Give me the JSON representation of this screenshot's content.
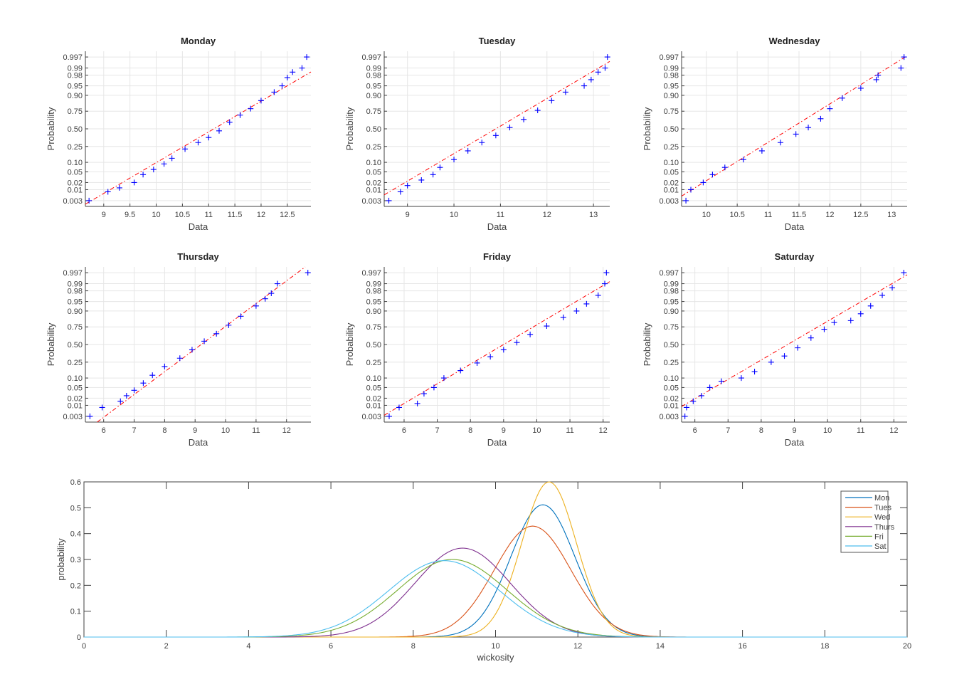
{
  "chart_data": [
    {
      "type": "scatter",
      "title": "Monday",
      "xlabel": "Data",
      "ylabel": "Probability",
      "grid": true,
      "xlim": [
        8.65,
        12.95
      ],
      "xticks": [
        9,
        9.5,
        10,
        10.5,
        11,
        11.5,
        12,
        12.5
      ],
      "yticks": [
        "0.003",
        "0.01",
        "0.02",
        "0.05",
        "0.10",
        "0.25",
        "0.50",
        "0.75",
        "0.90",
        "0.95",
        "0.98",
        "0.99",
        "0.997"
      ],
      "fit": {
        "mu": 11.1,
        "sigma": 0.85
      },
      "points": [
        [
          8.72,
          0.003
        ],
        [
          9.08,
          0.008
        ],
        [
          9.3,
          0.012
        ],
        [
          9.58,
          0.02
        ],
        [
          9.75,
          0.04
        ],
        [
          9.95,
          0.06
        ],
        [
          10.15,
          0.09
        ],
        [
          10.3,
          0.13
        ],
        [
          10.55,
          0.22
        ],
        [
          10.8,
          0.3
        ],
        [
          11.0,
          0.37
        ],
        [
          11.2,
          0.47
        ],
        [
          11.4,
          0.6
        ],
        [
          11.6,
          0.7
        ],
        [
          11.8,
          0.78
        ],
        [
          12.0,
          0.86
        ],
        [
          12.25,
          0.92
        ],
        [
          12.4,
          0.95
        ],
        [
          12.5,
          0.975
        ],
        [
          12.6,
          0.985
        ],
        [
          12.78,
          0.99
        ],
        [
          12.87,
          0.997
        ]
      ]
    },
    {
      "type": "scatter",
      "title": "Tuesday",
      "xlabel": "Data",
      "ylabel": "Probability",
      "grid": true,
      "xlim": [
        8.5,
        13.35
      ],
      "xticks": [
        9,
        10,
        11,
        12,
        13
      ],
      "yticks": [
        "0.003",
        "0.01",
        "0.02",
        "0.05",
        "0.10",
        "0.25",
        "0.50",
        "0.75",
        "0.90",
        "0.95",
        "0.98",
        "0.99",
        "0.997"
      ],
      "fit": {
        "mu": 10.9,
        "sigma": 0.95
      },
      "points": [
        [
          8.6,
          0.003
        ],
        [
          8.85,
          0.008
        ],
        [
          9.0,
          0.015
        ],
        [
          9.3,
          0.025
        ],
        [
          9.55,
          0.04
        ],
        [
          9.7,
          0.07
        ],
        [
          10.0,
          0.12
        ],
        [
          10.3,
          0.2
        ],
        [
          10.6,
          0.3
        ],
        [
          10.9,
          0.4
        ],
        [
          11.2,
          0.52
        ],
        [
          11.5,
          0.64
        ],
        [
          11.8,
          0.76
        ],
        [
          12.1,
          0.86
        ],
        [
          12.4,
          0.92
        ],
        [
          12.8,
          0.95
        ],
        [
          12.95,
          0.97
        ],
        [
          13.1,
          0.985
        ],
        [
          13.25,
          0.99
        ],
        [
          13.3,
          0.997
        ]
      ]
    },
    {
      "type": "scatter",
      "title": "Wednesday",
      "xlabel": "Data",
      "ylabel": "Probability",
      "grid": true,
      "xlim": [
        9.6,
        13.25
      ],
      "xticks": [
        10,
        10.5,
        11,
        11.5,
        12,
        12.5,
        13
      ],
      "yticks": [
        "0.003",
        "0.01",
        "0.02",
        "0.05",
        "0.10",
        "0.25",
        "0.50",
        "0.75",
        "0.90",
        "0.95",
        "0.98",
        "0.99",
        "0.997"
      ],
      "fit": {
        "mu": 11.35,
        "sigma": 0.68
      },
      "points": [
        [
          9.67,
          0.003
        ],
        [
          9.75,
          0.01
        ],
        [
          9.95,
          0.02
        ],
        [
          10.1,
          0.04
        ],
        [
          10.3,
          0.07
        ],
        [
          10.6,
          0.12
        ],
        [
          10.9,
          0.2
        ],
        [
          11.2,
          0.3
        ],
        [
          11.45,
          0.42
        ],
        [
          11.65,
          0.52
        ],
        [
          11.85,
          0.65
        ],
        [
          12.0,
          0.78
        ],
        [
          12.2,
          0.88
        ],
        [
          12.5,
          0.94
        ],
        [
          12.75,
          0.97
        ],
        [
          12.78,
          0.98
        ],
        [
          13.15,
          0.99
        ],
        [
          13.2,
          0.997
        ]
      ]
    },
    {
      "type": "scatter",
      "title": "Thursday",
      "xlabel": "Data",
      "ylabel": "Probability",
      "grid": true,
      "xlim": [
        5.4,
        12.8
      ],
      "xticks": [
        6,
        7,
        8,
        9,
        10,
        11,
        12
      ],
      "yticks": [
        "0.003",
        "0.01",
        "0.02",
        "0.05",
        "0.10",
        "0.25",
        "0.50",
        "0.75",
        "0.90",
        "0.95",
        "0.98",
        "0.99",
        "0.997"
      ],
      "fit": {
        "mu": 9.2,
        "sigma": 1.15
      },
      "points": [
        [
          5.55,
          0.003
        ],
        [
          5.95,
          0.008
        ],
        [
          6.55,
          0.015
        ],
        [
          6.75,
          0.025
        ],
        [
          7.0,
          0.04
        ],
        [
          7.3,
          0.07
        ],
        [
          7.6,
          0.12
        ],
        [
          8.0,
          0.2
        ],
        [
          8.5,
          0.3
        ],
        [
          8.9,
          0.42
        ],
        [
          9.3,
          0.55
        ],
        [
          9.7,
          0.66
        ],
        [
          10.1,
          0.77
        ],
        [
          10.5,
          0.86
        ],
        [
          11.0,
          0.93
        ],
        [
          11.3,
          0.96
        ],
        [
          11.5,
          0.975
        ],
        [
          11.7,
          0.99
        ],
        [
          12.7,
          0.997
        ]
      ]
    },
    {
      "type": "scatter",
      "title": "Friday",
      "xlabel": "Data",
      "ylabel": "Probability",
      "grid": true,
      "xlim": [
        5.4,
        12.2
      ],
      "xticks": [
        6,
        7,
        8,
        9,
        10,
        11,
        12
      ],
      "yticks": [
        "0.003",
        "0.01",
        "0.02",
        "0.05",
        "0.10",
        "0.25",
        "0.50",
        "0.75",
        "0.90",
        "0.95",
        "0.98",
        "0.99",
        "0.997"
      ],
      "fit": {
        "mu": 9.0,
        "sigma": 1.33
      },
      "points": [
        [
          5.55,
          0.003
        ],
        [
          5.85,
          0.008
        ],
        [
          6.4,
          0.012
        ],
        [
          6.6,
          0.03
        ],
        [
          6.9,
          0.05
        ],
        [
          7.2,
          0.1
        ],
        [
          7.7,
          0.16
        ],
        [
          8.2,
          0.24
        ],
        [
          8.6,
          0.32
        ],
        [
          9.0,
          0.42
        ],
        [
          9.4,
          0.53
        ],
        [
          9.8,
          0.65
        ],
        [
          10.3,
          0.76
        ],
        [
          10.8,
          0.85
        ],
        [
          11.2,
          0.9
        ],
        [
          11.5,
          0.94
        ],
        [
          11.85,
          0.97
        ],
        [
          12.05,
          0.99
        ],
        [
          12.1,
          0.997
        ]
      ]
    },
    {
      "type": "scatter",
      "title": "Saturday",
      "xlabel": "Data",
      "ylabel": "Probability",
      "grid": true,
      "xlim": [
        5.6,
        12.4
      ],
      "xticks": [
        6,
        7,
        8,
        9,
        10,
        11,
        12
      ],
      "yticks": [
        "0.003",
        "0.01",
        "0.02",
        "0.05",
        "0.10",
        "0.25",
        "0.50",
        "0.75",
        "0.90",
        "0.95",
        "0.98",
        "0.99",
        "0.997"
      ],
      "fit": {
        "mu": 8.8,
        "sigma": 1.35
      },
      "points": [
        [
          5.7,
          0.003
        ],
        [
          5.75,
          0.008
        ],
        [
          5.95,
          0.015
        ],
        [
          6.2,
          0.025
        ],
        [
          6.45,
          0.05
        ],
        [
          6.8,
          0.08
        ],
        [
          7.4,
          0.1
        ],
        [
          7.8,
          0.15
        ],
        [
          8.3,
          0.25
        ],
        [
          8.7,
          0.33
        ],
        [
          9.1,
          0.45
        ],
        [
          9.5,
          0.6
        ],
        [
          9.9,
          0.72
        ],
        [
          10.2,
          0.8
        ],
        [
          10.7,
          0.82
        ],
        [
          11.0,
          0.88
        ],
        [
          11.3,
          0.93
        ],
        [
          11.65,
          0.97
        ],
        [
          11.95,
          0.985
        ],
        [
          12.3,
          0.997
        ]
      ]
    },
    {
      "type": "line",
      "xlabel": "wickosity",
      "ylabel": "probability",
      "grid": false,
      "xlim": [
        0,
        20
      ],
      "ylim": [
        0,
        0.6
      ],
      "xticks": [
        0,
        2,
        4,
        6,
        8,
        10,
        12,
        14,
        16,
        18,
        20
      ],
      "yticks": [
        0,
        0.1,
        0.2,
        0.3,
        0.4,
        0.5,
        0.6
      ],
      "legend_position": "top-right",
      "series": [
        {
          "name": "Mon",
          "mu": 11.15,
          "sigma": 0.78,
          "color": "#0072BD"
        },
        {
          "name": "Tues",
          "mu": 10.9,
          "sigma": 0.93,
          "color": "#D95319"
        },
        {
          "name": "Wed",
          "mu": 11.3,
          "sigma": 0.665,
          "color": "#EDB120"
        },
        {
          "name": "Thurs",
          "mu": 9.2,
          "sigma": 1.16,
          "color": "#7E2F8E"
        },
        {
          "name": "Fri",
          "mu": 8.95,
          "sigma": 1.33,
          "color": "#77AC30"
        },
        {
          "name": "Sat",
          "mu": 8.75,
          "sigma": 1.35,
          "color": "#4DBEEE"
        }
      ]
    }
  ],
  "colors": {
    "points": "#0000FF",
    "fit_line": "#FF0000",
    "axis": "#404040",
    "grid": "#E6E6E6"
  }
}
